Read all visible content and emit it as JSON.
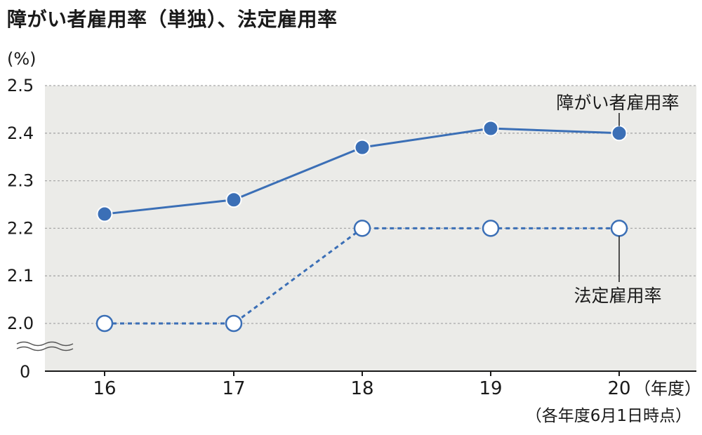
{
  "title": "障がい者雇用率（単独）、法定雇用率",
  "chart_data": {
    "type": "line",
    "title": "障がい者雇用率（単独）、法定雇用率",
    "y_unit": "(%)",
    "x_unit": "（年度）",
    "note": "（各年度6月1日時点）",
    "categories": [
      "16",
      "17",
      "18",
      "19",
      "20"
    ],
    "yticks": [
      "2.5",
      "2.4",
      "2.3",
      "2.2",
      "2.1",
      "2.0"
    ],
    "y_zero_label": "0",
    "ylim": [
      1.9,
      2.5
    ],
    "axis_break": true,
    "grid": true,
    "series": [
      {
        "name": "障がい者雇用率",
        "values": [
          2.23,
          2.26,
          2.37,
          2.41,
          2.4
        ],
        "marker": "filled",
        "line_style": "solid",
        "color": "#3b6fb6"
      },
      {
        "name": "法定雇用率",
        "values": [
          2.0,
          2.0,
          2.2,
          2.2,
          2.2
        ],
        "marker": "open",
        "line_style": "dashed",
        "color": "#3b6fb6"
      }
    ],
    "plot_background": "#ebebe8",
    "grid_color": "#a8a8a8"
  }
}
